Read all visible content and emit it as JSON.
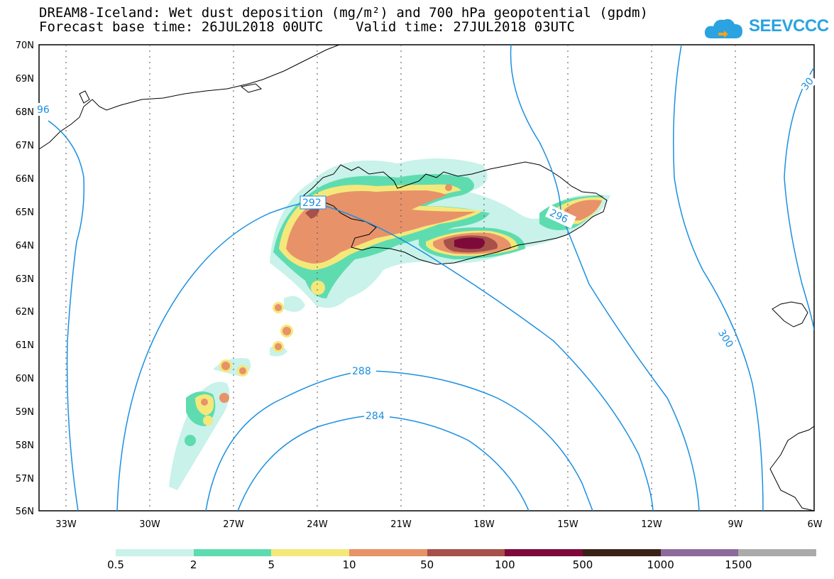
{
  "header": {
    "title_line1": "DREAM8-Iceland: Wet dust deposition (mg/m²) and 700 hPa geopotential (gpdm)",
    "title_line2": "Forecast base time: 26JUL2018 00UTC    Valid time: 27JUL2018 03UTC",
    "logo_text": "SEEVCCC"
  },
  "map": {
    "lat_labels": [
      "70N",
      "69N",
      "68N",
      "67N",
      "66N",
      "65N",
      "64N",
      "63N",
      "62N",
      "61N",
      "60N",
      "59N",
      "58N",
      "57N",
      "56N"
    ],
    "lon_labels": [
      "33W",
      "30W",
      "27W",
      "24W",
      "21W",
      "18W",
      "15W",
      "12W",
      "9W",
      "6W"
    ],
    "contour_labels": [
      "96",
      "292",
      "296",
      "300",
      "288",
      "284",
      "30"
    ]
  },
  "legend": {
    "labels": [
      "0.5",
      "2",
      "5",
      "10",
      "50",
      "100",
      "500",
      "1000",
      "1500"
    ],
    "colors": [
      "#c8f2ea",
      "#5edcb0",
      "#f5e87a",
      "#e8926a",
      "#a8504a",
      "#7e0a3a",
      "#3a2216",
      "#8c6a9a",
      "#aaaaaa"
    ]
  }
}
